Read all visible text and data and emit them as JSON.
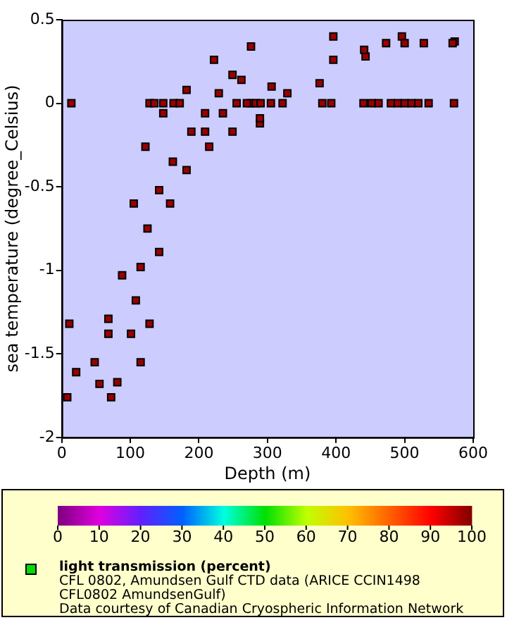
{
  "chart_data": {
    "type": "scatter",
    "xlabel": "Depth (m)",
    "ylabel": "sea temperature (degree_Celsius)",
    "clabel": "light transmission (percent)",
    "annotations": [
      "CFL 0802, Amundsen Gulf CTD data (ARICE CCIN1498 CFL0802 AmundsenGulf)",
      "Data courtesy of Canadian Cryospheric Information Network"
    ],
    "xlim": [
      0,
      600
    ],
    "xticks": [
      0,
      100,
      200,
      300,
      400,
      500,
      600
    ],
    "ylim": [
      -2,
      0.5
    ],
    "yticks": [
      -2,
      -1.5,
      -1,
      -0.5,
      0,
      0.5
    ],
    "clim": [
      0,
      100
    ],
    "cticks": [
      0,
      10,
      20,
      30,
      40,
      50,
      60,
      70,
      80,
      90,
      100
    ],
    "marker": "square",
    "grid": false,
    "series": [
      {
        "x": [
          8,
          11,
          68,
          88,
          105,
          122,
          148,
          182,
          222,
          276,
          396,
          496,
          573,
          72,
          81,
          115,
          128,
          142,
          158,
          182,
          215,
          249,
          289,
          262,
          396,
          443,
          376,
          329,
          276,
          48,
          21,
          55,
          68,
          101,
          108,
          115,
          125,
          142,
          162,
          189,
          209,
          229,
          249,
          209,
          235,
          14,
          128,
          135,
          148,
          163,
          172,
          255,
          270,
          283,
          290,
          305,
          322,
          380,
          393,
          440,
          452,
          462,
          480,
          490,
          500,
          510,
          520,
          535,
          572,
          473,
          500,
          528,
          570,
          441,
          306,
          289
        ],
        "values": [
          -1.76,
          -1.32,
          -1.29,
          -1.03,
          -0.6,
          -0.26,
          -0.06,
          0.08,
          0.26,
          0.34,
          0.4,
          0.4,
          0.37,
          -1.76,
          -1.67,
          -1.55,
          -1.32,
          -0.89,
          -0.6,
          -0.4,
          -0.26,
          -0.17,
          -0.12,
          0.14,
          0.26,
          0.28,
          0.12,
          0.06,
          0,
          -1.55,
          -1.61,
          -1.68,
          -1.38,
          -1.38,
          -1.18,
          -0.98,
          -0.75,
          -0.52,
          -0.35,
          -0.17,
          -0.06,
          0.06,
          0.17,
          -0.17,
          -0.06,
          0,
          0,
          0,
          0,
          0,
          0,
          0,
          0,
          0,
          0,
          0,
          0,
          0,
          0,
          0,
          0,
          0,
          0,
          0,
          0,
          0,
          0,
          0,
          0,
          0.36,
          0.36,
          0.36,
          0.36,
          0.32,
          0.1,
          -0.09
        ],
        "cvalues": [
          98,
          98,
          98,
          98,
          98,
          98,
          98,
          98,
          98,
          98,
          98,
          98,
          98,
          98,
          98,
          98,
          98,
          98,
          98,
          98,
          98,
          98,
          98,
          98,
          98,
          98,
          98,
          98,
          98,
          98,
          98,
          98,
          98,
          98,
          98,
          98,
          98,
          98,
          98,
          98,
          98,
          98,
          98,
          98,
          98,
          98,
          98,
          98,
          98,
          98,
          98,
          98,
          98,
          98,
          98,
          98,
          98,
          98,
          98,
          98,
          98,
          98,
          98,
          98,
          98,
          98,
          98,
          98,
          98,
          98,
          98,
          98,
          98,
          98,
          98,
          98
        ]
      }
    ]
  }
}
